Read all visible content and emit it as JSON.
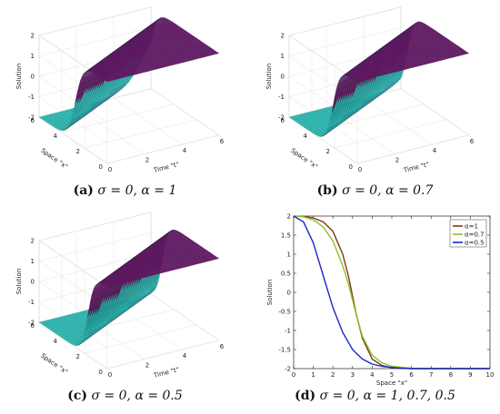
{
  "chart_data": [
    {
      "type": "surface",
      "panel": "a",
      "params": {
        "sigma": "0",
        "alpha": "1"
      },
      "caption": {
        "letter": "(a)",
        "text_sigma": "σ = 0,",
        "text_alpha": "α = 1"
      },
      "xlabel": "Space \"x\"",
      "ylabel": "Time \"t\"",
      "zlabel": "Solution",
      "x_ticks": [
        "0",
        "2",
        "4",
        "6"
      ],
      "t_ticks": [
        "0",
        "2",
        "4",
        "6"
      ],
      "z_ticks": [
        "-2",
        "-1",
        "0",
        "1",
        "2"
      ],
      "xlim": [
        0,
        6
      ],
      "tlim": [
        0,
        6
      ],
      "zlim": [
        -2,
        2
      ],
      "colors": {
        "high": "#6a1a6e",
        "low": "#2ec9c4"
      }
    },
    {
      "type": "surface",
      "panel": "b",
      "params": {
        "sigma": "0",
        "alpha": "0.7"
      },
      "caption": {
        "letter": "(b)",
        "text_sigma": "σ = 0,",
        "text_alpha": "α = 0.7"
      },
      "xlabel": "Space \"x\"",
      "ylabel": "Time \"t\"",
      "zlabel": "Solution",
      "x_ticks": [
        "0",
        "2",
        "4",
        "6"
      ],
      "t_ticks": [
        "0",
        "2",
        "4",
        "6"
      ],
      "z_ticks": [
        "-2",
        "-1",
        "0",
        "1",
        "2"
      ],
      "xlim": [
        0,
        6
      ],
      "tlim": [
        0,
        6
      ],
      "zlim": [
        -2,
        2
      ],
      "colors": {
        "high": "#6a1a6e",
        "low": "#2ec9c4"
      }
    },
    {
      "type": "surface",
      "panel": "c",
      "params": {
        "sigma": "0",
        "alpha": "0.5"
      },
      "caption": {
        "letter": "(c)",
        "text_sigma": "σ = 0,",
        "text_alpha": "α = 0.5"
      },
      "xlabel": "Space \"x\"",
      "ylabel": "Time \"t\"",
      "zlabel": "Solution",
      "x_ticks": [
        "0",
        "2",
        "4",
        "6"
      ],
      "t_ticks": [
        "0",
        "2",
        "4",
        "6"
      ],
      "z_ticks": [
        "-2",
        "-1",
        "0",
        "1",
        "2"
      ],
      "xlim": [
        0,
        6
      ],
      "tlim": [
        0,
        6
      ],
      "zlim": [
        -2,
        2
      ],
      "colors": {
        "high": "#6a1a6e",
        "low": "#2ec9c4"
      }
    },
    {
      "type": "line",
      "panel": "d",
      "caption": {
        "letter": "(d)",
        "text_sigma": "σ = 0,",
        "text_alpha": "α = 1, 0.7, 0.5"
      },
      "xlabel": "Space \"x\"",
      "ylabel": "Solution",
      "xlim": [
        0,
        10
      ],
      "ylim": [
        -2,
        2
      ],
      "x_ticks": [
        "0",
        "1",
        "2",
        "3",
        "4",
        "5",
        "6",
        "7",
        "8",
        "9",
        "10"
      ],
      "y_ticks": [
        "-2",
        "-1.5",
        "-1",
        "-0.5",
        "0",
        "0.5",
        "1",
        "1.5",
        "2"
      ],
      "grid": false,
      "legend_position": "top-right",
      "series": [
        {
          "name": "α=1",
          "color": "#7a3c14",
          "x": [
            0,
            0.5,
            1,
            1.5,
            2,
            2.5,
            2.8,
            3,
            3.2,
            3.5,
            4,
            4.5,
            5,
            6,
            7,
            8,
            9,
            10
          ],
          "y": [
            2,
            1.99,
            1.95,
            1.85,
            1.6,
            1.0,
            0.4,
            -0.1,
            -0.6,
            -1.2,
            -1.75,
            -1.92,
            -1.98,
            -2,
            -2,
            -2,
            -2,
            -2
          ]
        },
        {
          "name": "α=0.7",
          "color": "#8fbf2a",
          "x": [
            0,
            0.5,
            1,
            1.5,
            2,
            2.5,
            2.8,
            3,
            3.2,
            3.5,
            4,
            4.5,
            5,
            6,
            7,
            8,
            9,
            10
          ],
          "y": [
            2,
            1.98,
            1.9,
            1.72,
            1.35,
            0.7,
            0.2,
            -0.2,
            -0.6,
            -1.15,
            -1.65,
            -1.85,
            -1.94,
            -1.99,
            -2,
            -2,
            -2,
            -2
          ]
        },
        {
          "name": "α=0.5",
          "color": "#1c24c8",
          "x": [
            0,
            0.5,
            1,
            1.5,
            2,
            2.5,
            3,
            3.5,
            4,
            4.5,
            5,
            5.5,
            6,
            7,
            8,
            9,
            10
          ],
          "y": [
            2,
            1.85,
            1.3,
            0.45,
            -0.4,
            -1.05,
            -1.5,
            -1.75,
            -1.88,
            -1.94,
            -1.97,
            -1.99,
            -2,
            -2,
            -2,
            -2,
            -2
          ]
        }
      ]
    }
  ]
}
